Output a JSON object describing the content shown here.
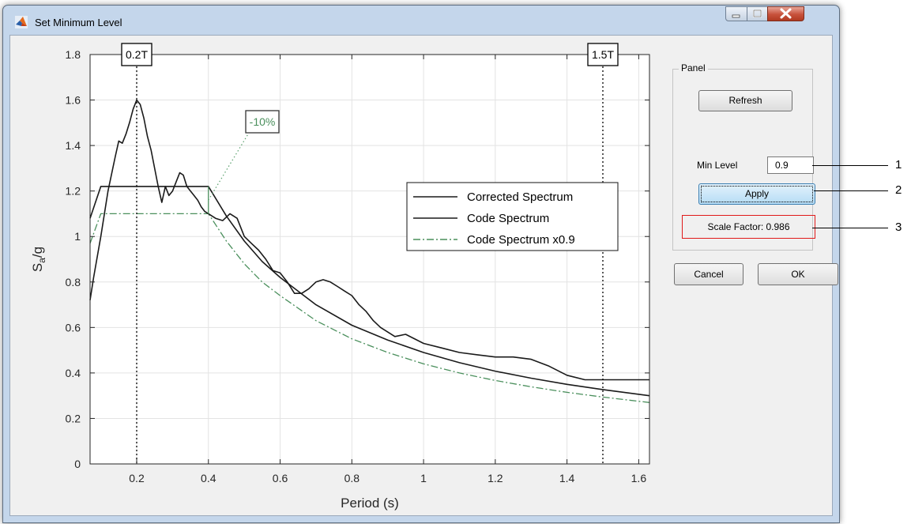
{
  "window": {
    "title": "Set Minimum Level"
  },
  "panel": {
    "title": "Panel",
    "refresh_label": "Refresh",
    "min_level_label": "Min Level",
    "min_level_value": "0.9",
    "apply_label": "Apply",
    "scale_factor_label": "Scale Factor:",
    "scale_factor_value": "0.986"
  },
  "dialog": {
    "cancel_label": "Cancel",
    "ok_label": "OK"
  },
  "callouts": [
    "1",
    "2",
    "3"
  ],
  "chart_data": {
    "type": "line",
    "xlabel": "Period (s)",
    "ylabel": "S_a/g",
    "ylabel_main": "S",
    "ylabel_sub": "a",
    "ylabel_rest": "/g",
    "xlim": [
      0.07,
      1.63
    ],
    "ylim": [
      0,
      1.8
    ],
    "xticks": [
      0.2,
      0.4,
      0.6,
      0.8,
      1,
      1.2,
      1.4,
      1.6
    ],
    "xtick_labels": [
      "0.2",
      "0.4",
      "0.6",
      "0.8",
      "1",
      "1.2",
      "1.4",
      "1.6"
    ],
    "yticks": [
      0,
      0.2,
      0.4,
      0.6,
      0.8,
      1,
      1.2,
      1.4,
      1.6,
      1.8
    ],
    "ytick_labels": [
      "0",
      "0.2",
      "0.4",
      "0.6",
      "0.8",
      "1",
      "1.2",
      "1.4",
      "1.6",
      "1.8"
    ],
    "grid": true,
    "legend_position": "center-right",
    "annotations": [
      {
        "text": "0.2T",
        "x": 0.2
      },
      {
        "text": "1.5T",
        "x": 1.5
      },
      {
        "text": "-10%",
        "x": 0.4,
        "y": 1.1
      }
    ],
    "vertical_lines": [
      0.2,
      1.5
    ],
    "series": [
      {
        "name": "Corrected Spectrum",
        "color": "#1a1a1a",
        "style": "solid",
        "x": [
          0.07,
          0.08,
          0.1,
          0.12,
          0.14,
          0.15,
          0.16,
          0.17,
          0.18,
          0.19,
          0.2,
          0.21,
          0.22,
          0.23,
          0.24,
          0.25,
          0.26,
          0.27,
          0.28,
          0.29,
          0.3,
          0.31,
          0.32,
          0.33,
          0.34,
          0.35,
          0.36,
          0.37,
          0.38,
          0.39,
          0.4,
          0.42,
          0.44,
          0.46,
          0.48,
          0.5,
          0.52,
          0.54,
          0.56,
          0.58,
          0.6,
          0.62,
          0.64,
          0.66,
          0.68,
          0.7,
          0.72,
          0.74,
          0.76,
          0.78,
          0.8,
          0.82,
          0.84,
          0.86,
          0.88,
          0.9,
          0.92,
          0.95,
          1.0,
          1.05,
          1.1,
          1.15,
          1.2,
          1.25,
          1.3,
          1.35,
          1.4,
          1.45,
          1.5,
          1.55,
          1.6,
          1.63
        ],
        "y": [
          0.72,
          0.82,
          1.0,
          1.2,
          1.35,
          1.42,
          1.41,
          1.45,
          1.5,
          1.56,
          1.6,
          1.58,
          1.52,
          1.44,
          1.38,
          1.3,
          1.22,
          1.15,
          1.22,
          1.18,
          1.2,
          1.24,
          1.28,
          1.27,
          1.22,
          1.2,
          1.18,
          1.16,
          1.13,
          1.11,
          1.1,
          1.08,
          1.07,
          1.1,
          1.08,
          1.0,
          0.97,
          0.94,
          0.9,
          0.85,
          0.84,
          0.8,
          0.75,
          0.75,
          0.77,
          0.8,
          0.81,
          0.8,
          0.78,
          0.76,
          0.74,
          0.7,
          0.67,
          0.63,
          0.6,
          0.58,
          0.56,
          0.57,
          0.53,
          0.51,
          0.49,
          0.48,
          0.47,
          0.47,
          0.46,
          0.43,
          0.39,
          0.37,
          0.37,
          0.37,
          0.37,
          0.37
        ]
      },
      {
        "name": "Code Spectrum",
        "color": "#1a1a1a",
        "style": "solid",
        "x": [
          0.07,
          0.1,
          0.2,
          0.3,
          0.4,
          0.45,
          0.5,
          0.55,
          0.6,
          0.7,
          0.8,
          0.9,
          1.0,
          1.1,
          1.2,
          1.3,
          1.4,
          1.5,
          1.63
        ],
        "y": [
          1.08,
          1.22,
          1.22,
          1.22,
          1.22,
          1.09,
          0.98,
          0.89,
          0.82,
          0.7,
          0.61,
          0.545,
          0.49,
          0.445,
          0.408,
          0.377,
          0.35,
          0.327,
          0.3
        ]
      },
      {
        "name": "Code Spectrum x0.9",
        "color": "#4a8f5c",
        "style": "dashdot",
        "x": [
          0.07,
          0.1,
          0.2,
          0.3,
          0.4,
          0.45,
          0.5,
          0.55,
          0.6,
          0.7,
          0.8,
          0.9,
          1.0,
          1.1,
          1.2,
          1.3,
          1.4,
          1.5,
          1.63
        ],
        "y": [
          0.97,
          1.1,
          1.1,
          1.1,
          1.1,
          0.98,
          0.88,
          0.8,
          0.74,
          0.63,
          0.55,
          0.49,
          0.44,
          0.4,
          0.367,
          0.339,
          0.315,
          0.294,
          0.27
        ]
      }
    ]
  }
}
